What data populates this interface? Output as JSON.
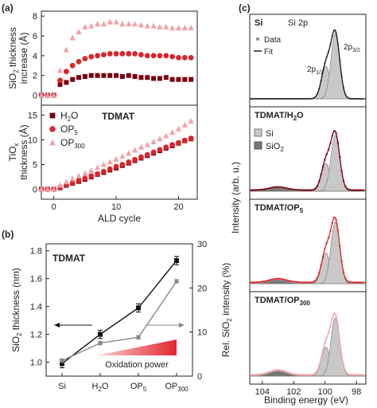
{
  "figure": {
    "panel_a_label": "(a)",
    "panel_b_label": "(b)",
    "panel_c_label": "(c)"
  },
  "chart_data": [
    {
      "type": "scatter",
      "panel": "a-top",
      "ylabel": "SiO2 thickness increase (Å)",
      "ylim": [
        -1,
        8.5
      ],
      "yticks": [
        0,
        2,
        4,
        6,
        8
      ],
      "xlim": [
        -2,
        23
      ],
      "series": [
        {
          "name": "H2O",
          "marker": "square",
          "color": "#7a0010",
          "x": [
            -2,
            -1,
            0,
            1,
            2,
            3,
            4,
            5,
            6,
            7,
            8,
            9,
            10,
            11,
            12,
            13,
            14,
            15,
            16,
            17,
            18,
            19,
            20,
            21,
            22
          ],
          "y": [
            0,
            0,
            0,
            1.1,
            1.3,
            1.6,
            1.8,
            1.9,
            2.0,
            2.0,
            2.0,
            2.0,
            2.0,
            1.9,
            2.0,
            1.9,
            1.8,
            1.8,
            1.7,
            1.7,
            1.8,
            1.6,
            1.6,
            1.6,
            1.6
          ]
        },
        {
          "name": "OP5",
          "marker": "circle",
          "color": "#d8262c",
          "x": [
            -2,
            -1,
            0,
            1,
            2,
            3,
            4,
            5,
            6,
            7,
            8,
            9,
            10,
            11,
            12,
            13,
            14,
            15,
            16,
            17,
            18,
            19,
            20,
            21,
            22
          ],
          "y": [
            0,
            0,
            0,
            1.5,
            2.4,
            3.0,
            3.4,
            3.7,
            3.9,
            4.0,
            4.1,
            4.2,
            4.2,
            4.2,
            4.2,
            4.2,
            4.1,
            4.0,
            4.0,
            4.0,
            4.0,
            3.9,
            3.8,
            3.8,
            3.8
          ]
        },
        {
          "name": "OP300",
          "marker": "triangle",
          "color": "#f4a0a6",
          "x": [
            -2,
            -1,
            0,
            1,
            2,
            3,
            4,
            5,
            6,
            7,
            8,
            9,
            10,
            11,
            12,
            13,
            14,
            15,
            16,
            17,
            18,
            19,
            20,
            21,
            22
          ],
          "y": [
            0,
            0,
            0,
            2.5,
            4.6,
            5.8,
            6.4,
            6.9,
            7.0,
            7.2,
            7.2,
            7.4,
            7.4,
            7.2,
            7.2,
            7.2,
            7.1,
            7.0,
            7.0,
            6.9,
            6.9,
            6.8,
            6.8,
            6.8,
            6.8
          ]
        }
      ]
    },
    {
      "type": "scatter",
      "panel": "a-bottom",
      "title": "TDMAT",
      "xlabel": "ALD cycle",
      "ylabel": "TiOx thickness (Å)",
      "xlim": [
        -2,
        23
      ],
      "ylim": [
        -2,
        17
      ],
      "xticks": [
        0,
        10,
        20
      ],
      "yticks": [
        0,
        5,
        10,
        15
      ],
      "legend": [
        "H2O",
        "OP5",
        "OP300"
      ],
      "series": [
        {
          "name": "H2O",
          "marker": "square",
          "color": "#7a0010",
          "x": [
            -2,
            -1,
            0,
            1,
            2,
            3,
            4,
            5,
            6,
            7,
            8,
            9,
            10,
            11,
            12,
            13,
            14,
            15,
            16,
            17,
            18,
            19,
            20,
            21,
            22
          ],
          "y": [
            0,
            0,
            0,
            0.3,
            0.8,
            1.2,
            1.6,
            2.0,
            2.5,
            3.0,
            3.4,
            3.9,
            4.3,
            4.8,
            5.3,
            5.8,
            6.3,
            6.8,
            7.3,
            7.8,
            8.3,
            8.8,
            9.3,
            9.8,
            10.2
          ]
        },
        {
          "name": "OP5",
          "marker": "circle",
          "color": "#d8262c",
          "x": [
            -2,
            -1,
            0,
            1,
            2,
            3,
            4,
            5,
            6,
            7,
            8,
            9,
            10,
            11,
            12,
            13,
            14,
            15,
            16,
            17,
            18,
            19,
            20,
            21,
            22
          ],
          "y": [
            0,
            0,
            0,
            0.4,
            0.9,
            1.3,
            1.8,
            2.2,
            2.7,
            3.1,
            3.6,
            4.1,
            4.6,
            5.0,
            5.5,
            6.0,
            6.5,
            7.0,
            7.5,
            8.0,
            8.5,
            9.0,
            9.4,
            9.9,
            10.3
          ]
        },
        {
          "name": "OP300",
          "marker": "triangle",
          "color": "#f4a0a6",
          "x": [
            -2,
            -1,
            0,
            1,
            2,
            3,
            4,
            5,
            6,
            7,
            8,
            9,
            10,
            11,
            12,
            13,
            14,
            15,
            16,
            17,
            18,
            19,
            20,
            21,
            22
          ],
          "y": [
            0,
            0,
            0,
            0.8,
            1.5,
            2.1,
            2.7,
            3.2,
            3.8,
            4.4,
            5.0,
            5.5,
            6.1,
            6.7,
            7.3,
            7.9,
            8.5,
            9.0,
            9.6,
            10.2,
            10.8,
            11.5,
            12.2,
            13.0,
            13.8
          ]
        }
      ]
    },
    {
      "type": "line",
      "panel": "b",
      "title": "TDMAT",
      "categories": [
        "Si",
        "H2O",
        "OP5",
        "OP300"
      ],
      "ylabel": "SiO2 thickness (nm)",
      "ylim": [
        0.9,
        1.85
      ],
      "yticks": [
        1.0,
        1.2,
        1.4,
        1.6,
        1.8
      ],
      "y2label": "Rel. SiO2 intensity (%)",
      "y2lim": [
        0,
        30
      ],
      "y2ticks": [
        0,
        10,
        20,
        30
      ],
      "annotation": "Oxidation power",
      "series": [
        {
          "name": "SiO2 thickness",
          "axis": "left",
          "color": "#111111",
          "values": [
            0.99,
            1.2,
            1.39,
            1.73
          ],
          "errors": [
            0.03,
            0.03,
            0.03,
            0.03
          ]
        },
        {
          "name": "Rel. SiO2 intensity",
          "axis": "right",
          "color": "#888888",
          "values": [
            3.5,
            7.5,
            8.8,
            21.5
          ],
          "errors": [
            0.4,
            0.4,
            0.4,
            0.4
          ]
        }
      ]
    },
    {
      "type": "line",
      "panel": "c",
      "xlabel": "Binding energy (eV)",
      "ylabel": "Intensity (arb. u.)",
      "xlim": [
        104.8,
        97.4
      ],
      "xticks": [
        104,
        102,
        100,
        98
      ],
      "reversed_x": true,
      "subpanels": [
        {
          "title": "Si",
          "subtitle": "Si 2p",
          "legend": [
            "Data",
            "Fit"
          ],
          "peak_labels": [
            "2p1/2",
            "2p3/2"
          ],
          "si_peak": 99.35,
          "si_height": 0.95,
          "sio2_height": 0.0,
          "data_color": "#888888",
          "fit_color": "#111111"
        },
        {
          "title": "TDMAT/H2O",
          "legend": [
            "Si",
            "SiO2"
          ],
          "si_peak": 99.35,
          "si_height": 0.82,
          "sio2_height": 0.05,
          "data_color": "#7a0010",
          "fit_color": "#7a0010"
        },
        {
          "title": "TDMAT/OP5",
          "si_peak": 99.35,
          "si_height": 0.9,
          "sio2_height": 0.06,
          "data_color": "#d8262c",
          "fit_color": "#d8262c"
        },
        {
          "title": "TDMAT/OP300",
          "si_peak": 99.35,
          "si_height": 0.85,
          "sio2_height": 0.08,
          "data_color": "#f4a0a6",
          "fit_color": "#f4a0a6"
        }
      ]
    }
  ]
}
